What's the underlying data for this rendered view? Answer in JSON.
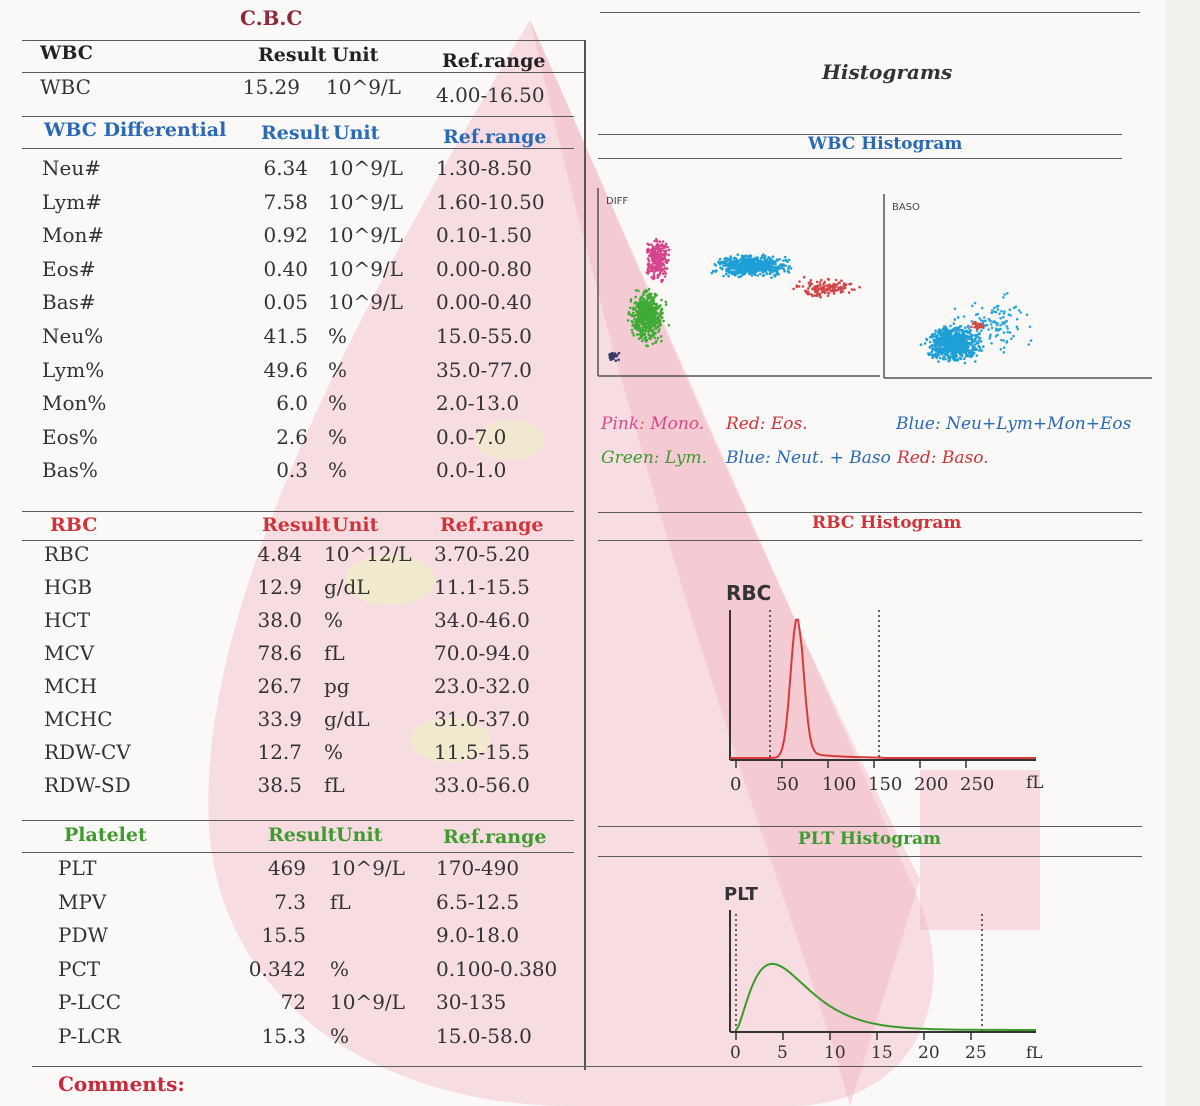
{
  "report": {
    "title": "C.B.C",
    "comments_label": "Comments:"
  },
  "columns": {
    "result": "Result",
    "unit": "Unit",
    "ref": "Ref.range"
  },
  "sections": {
    "wbc": {
      "heading": "WBC",
      "rows": [
        {
          "name": "WBC",
          "result": "15.29",
          "unit": "10^9/L",
          "ref": "4.00-16.50"
        }
      ]
    },
    "differential": {
      "heading": "WBC Differential",
      "rows": [
        {
          "name": "Neu#",
          "result": "6.34",
          "unit": "10^9/L",
          "ref": "1.30-8.50"
        },
        {
          "name": "Lym#",
          "result": "7.58",
          "unit": "10^9/L",
          "ref": "1.60-10.50"
        },
        {
          "name": "Mon#",
          "result": "0.92",
          "unit": "10^9/L",
          "ref": "0.10-1.50"
        },
        {
          "name": "Eos#",
          "result": "0.40",
          "unit": "10^9/L",
          "ref": "0.00-0.80"
        },
        {
          "name": "Bas#",
          "result": "0.05",
          "unit": "10^9/L",
          "ref": "0.00-0.40"
        },
        {
          "name": "Neu%",
          "result": "41.5",
          "unit": "%",
          "ref": "15.0-55.0"
        },
        {
          "name": "Lym%",
          "result": "49.6",
          "unit": "%",
          "ref": "35.0-77.0"
        },
        {
          "name": "Mon%",
          "result": "6.0",
          "unit": "%",
          "ref": "2.0-13.0"
        },
        {
          "name": "Eos%",
          "result": "2.6",
          "unit": "%",
          "ref": "0.0-7.0"
        },
        {
          "name": "Bas%",
          "result": "0.3",
          "unit": "%",
          "ref": "0.0-1.0"
        }
      ]
    },
    "rbc": {
      "heading": "RBC",
      "rows": [
        {
          "name": "RBC",
          "result": "4.84",
          "unit": "10^12/L",
          "ref": "3.70-5.20"
        },
        {
          "name": "HGB",
          "result": "12.9",
          "unit": "g/dL",
          "ref": "11.1-15.5"
        },
        {
          "name": "HCT",
          "result": "38.0",
          "unit": "%",
          "ref": "34.0-46.0"
        },
        {
          "name": "MCV",
          "result": "78.6",
          "unit": "fL",
          "ref": "70.0-94.0"
        },
        {
          "name": "MCH",
          "result": "26.7",
          "unit": "pg",
          "ref": "23.0-32.0"
        },
        {
          "name": "MCHC",
          "result": "33.9",
          "unit": "g/dL",
          "ref": "31.0-37.0"
        },
        {
          "name": "RDW-CV",
          "result": "12.7",
          "unit": "%",
          "ref": "11.5-15.5"
        },
        {
          "name": "RDW-SD",
          "result": "38.5",
          "unit": "fL",
          "ref": "33.0-56.0"
        }
      ]
    },
    "platelet": {
      "heading": "Platelet",
      "rows": [
        {
          "name": "PLT",
          "result": "469",
          "unit": "10^9/L",
          "ref": "170-490"
        },
        {
          "name": "MPV",
          "result": "7.3",
          "unit": "fL",
          "ref": "6.5-12.5"
        },
        {
          "name": "PDW",
          "result": "15.5",
          "unit": "",
          "ref": "9.0-18.0"
        },
        {
          "name": "PCT",
          "result": "0.342",
          "unit": "%",
          "ref": "0.100-0.380"
        },
        {
          "name": "P-LCC",
          "result": "72",
          "unit": "10^9/L",
          "ref": "30-135"
        },
        {
          "name": "P-LCR",
          "result": "15.3",
          "unit": "%",
          "ref": "15.0-58.0"
        }
      ]
    }
  },
  "histograms": {
    "title": "Histograms",
    "wbc_title": "WBC Histogram",
    "diff_label": "DIFF",
    "baso_label": "BASO",
    "legend": {
      "pink": "Pink: Mono.",
      "red_eos": "Red: Eos.",
      "blue_all": "Blue: Neu+Lym+Mon+Eos",
      "green": "Green: Lym.",
      "blue_neut": "Blue: Neut. + Baso",
      "red_baso": "Red: Baso."
    },
    "rbc_title": "RBC Histogram",
    "rbc_label": "RBC",
    "rbc_ticks": [
      "0",
      "50",
      "100",
      "150",
      "200",
      "250"
    ],
    "rbc_unit": "fL",
    "plt_title": "PLT Histogram",
    "plt_label": "PLT",
    "plt_ticks": [
      "0",
      "5",
      "10",
      "15",
      "20",
      "25"
    ],
    "plt_unit": "fL"
  },
  "colors": {
    "wbc_heading": "#2a6ab5",
    "rbc_heading": "#d0343a",
    "platelet_heading": "#3f9a2f",
    "rbc_curve": "#d83a3a",
    "plt_curve": "#3a9a2a"
  }
}
